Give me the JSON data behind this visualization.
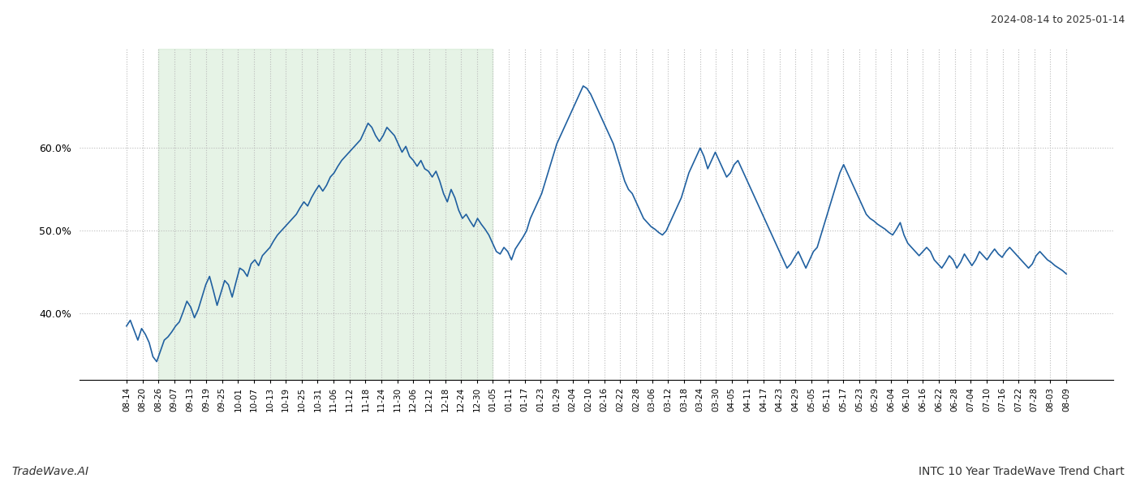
{
  "title_top_right": "2024-08-14 to 2025-01-14",
  "footer_left": "TradeWave.AI",
  "footer_right": "INTC 10 Year TradeWave Trend Chart",
  "line_color": "#2060a0",
  "line_width": 1.2,
  "bg_color": "#ffffff",
  "shaded_region_color": "#c8e6c9",
  "shaded_region_alpha": 0.45,
  "grid_color": "#bbbbbb",
  "ylim": [
    32,
    72
  ],
  "yticks": [
    40.0,
    50.0,
    60.0
  ],
  "tick_labels": [
    "08-14",
    "08-20",
    "08-26",
    "09-07",
    "09-13",
    "09-19",
    "09-25",
    "10-01",
    "10-07",
    "10-13",
    "10-19",
    "10-25",
    "10-31",
    "11-06",
    "11-12",
    "11-18",
    "11-24",
    "11-30",
    "12-06",
    "12-12",
    "12-18",
    "12-24",
    "12-30",
    "01-05",
    "01-11",
    "01-17",
    "01-23",
    "01-29",
    "02-04",
    "02-10",
    "02-16",
    "02-22",
    "02-28",
    "03-06",
    "03-12",
    "03-18",
    "03-24",
    "03-30",
    "04-05",
    "04-11",
    "04-17",
    "04-23",
    "04-29",
    "05-05",
    "05-11",
    "05-17",
    "05-23",
    "05-29",
    "06-04",
    "06-10",
    "06-16",
    "06-22",
    "06-28",
    "07-04",
    "07-10",
    "07-16",
    "07-22",
    "07-28",
    "08-03",
    "08-09"
  ],
  "shaded_start_label": "08-26",
  "shaded_end_label": "01-05",
  "y_values": [
    38.5,
    39.2,
    38.0,
    36.8,
    38.2,
    37.5,
    36.5,
    34.8,
    34.2,
    35.5,
    36.8,
    37.2,
    37.8,
    38.5,
    39.0,
    40.2,
    41.5,
    40.8,
    39.5,
    40.5,
    42.0,
    43.5,
    44.5,
    42.8,
    41.0,
    42.5,
    44.0,
    43.5,
    42.0,
    43.8,
    45.5,
    45.2,
    44.5,
    46.0,
    46.5,
    45.8,
    47.0,
    47.5,
    48.0,
    48.8,
    49.5,
    50.0,
    50.5,
    51.0,
    51.5,
    52.0,
    52.8,
    53.5,
    53.0,
    54.0,
    54.8,
    55.5,
    54.8,
    55.5,
    56.5,
    57.0,
    57.8,
    58.5,
    59.0,
    59.5,
    60.0,
    60.5,
    61.0,
    62.0,
    63.0,
    62.5,
    61.5,
    60.8,
    61.5,
    62.5,
    62.0,
    61.5,
    60.5,
    59.5,
    60.2,
    59.0,
    58.5,
    57.8,
    58.5,
    57.5,
    57.2,
    56.5,
    57.2,
    56.0,
    54.5,
    53.5,
    55.0,
    54.0,
    52.5,
    51.5,
    52.0,
    51.2,
    50.5,
    51.5,
    50.8,
    50.2,
    49.5,
    48.5,
    47.5,
    47.2,
    48.0,
    47.5,
    46.5,
    47.8,
    48.5,
    49.2,
    50.0,
    51.5,
    52.5,
    53.5,
    54.5,
    56.0,
    57.5,
    59.0,
    60.5,
    61.5,
    62.5,
    63.5,
    64.5,
    65.5,
    66.5,
    67.5,
    67.2,
    66.5,
    65.5,
    64.5,
    63.5,
    62.5,
    61.5,
    60.5,
    59.0,
    57.5,
    56.0,
    55.0,
    54.5,
    53.5,
    52.5,
    51.5,
    51.0,
    50.5,
    50.2,
    49.8,
    49.5,
    50.0,
    51.0,
    52.0,
    53.0,
    54.0,
    55.5,
    57.0,
    58.0,
    59.0,
    60.0,
    59.0,
    57.5,
    58.5,
    59.5,
    58.5,
    57.5,
    56.5,
    57.0,
    58.0,
    58.5,
    57.5,
    56.5,
    55.5,
    54.5,
    53.5,
    52.5,
    51.5,
    50.5,
    49.5,
    48.5,
    47.5,
    46.5,
    45.5,
    46.0,
    46.8,
    47.5,
    46.5,
    45.5,
    46.5,
    47.5,
    48.0,
    49.5,
    51.0,
    52.5,
    54.0,
    55.5,
    57.0,
    58.0,
    57.0,
    56.0,
    55.0,
    54.0,
    53.0,
    52.0,
    51.5,
    51.2,
    50.8,
    50.5,
    50.2,
    49.8,
    49.5,
    50.2,
    51.0,
    49.5,
    48.5,
    48.0,
    47.5,
    47.0,
    47.5,
    48.0,
    47.5,
    46.5,
    46.0,
    45.5,
    46.2,
    47.0,
    46.5,
    45.5,
    46.2,
    47.2,
    46.5,
    45.8,
    46.5,
    47.5,
    47.0,
    46.5,
    47.2,
    47.8,
    47.2,
    46.8,
    47.5,
    48.0,
    47.5,
    47.0,
    46.5,
    46.0,
    45.5,
    46.0,
    47.0,
    47.5,
    47.0,
    46.5,
    46.2,
    45.8,
    45.5,
    45.2,
    44.8
  ]
}
